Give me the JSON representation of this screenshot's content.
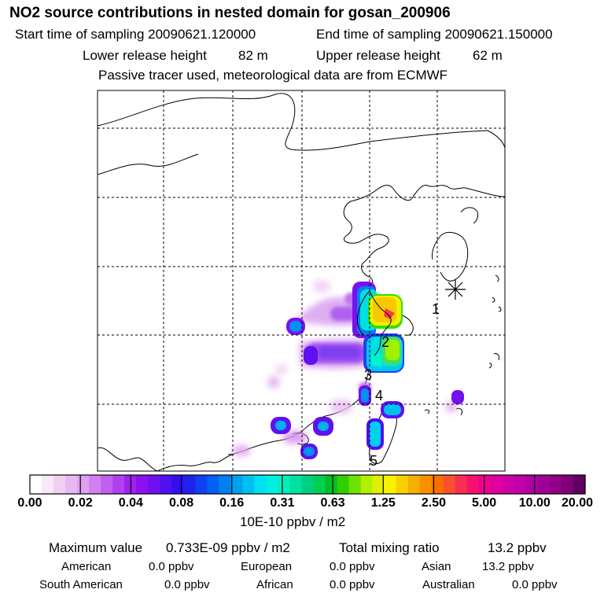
{
  "header": {
    "title": "NO2 source contributions in nested domain for gosan_200906",
    "start_label": "Start time of sampling 20090621.120000",
    "end_label": "End time of sampling 20090621.150000",
    "lower_label": "Lower release height",
    "lower_value": "82 m",
    "upper_label": "Upper release height",
    "upper_value": "62 m",
    "note": "Passive tracer used, meteorological data are from ECMWF"
  },
  "map": {
    "receptor_symbol": "asterisk-receptor",
    "source_labels": [
      "1",
      "2",
      "3",
      "4",
      "5"
    ]
  },
  "colorbar": {
    "tick_labels": [
      "0.00",
      "0.02",
      "0.04",
      "0.08",
      "0.16",
      "0.31",
      "0.63",
      "1.25",
      "2.50",
      "5.00",
      "10.00",
      "20.00"
    ],
    "colors": [
      "#ffffff",
      "#f8e8f8",
      "#f0d0f0",
      "#e8b8f0",
      "#e0a0f0",
      "#d080f0",
      "#c060f0",
      "#b040f0",
      "#a020f0",
      "#8c10f0",
      "#7010f0",
      "#5010f0",
      "#3010f0",
      "#2020f0",
      "#1040f0",
      "#0060f0",
      "#0080f0",
      "#00a0f0",
      "#00c0f0",
      "#00e0f0",
      "#00f0e0",
      "#00f0c0",
      "#00e0a0",
      "#00d080",
      "#00d050",
      "#00c020",
      "#30d000",
      "#70e000",
      "#b0f000",
      "#e0f000",
      "#f8f000",
      "#f8d000",
      "#f8b000",
      "#f89000",
      "#f87000",
      "#f85030",
      "#f83050",
      "#f81070",
      "#f00090",
      "#e000a0",
      "#d000a8",
      "#c000a8",
      "#b000a0",
      "#a00098",
      "#900088",
      "#800078",
      "#600060"
    ],
    "units": "10E-10 ppbv / m2"
  },
  "summary": {
    "max_label": "Maximum value",
    "max_value": "0.733E-09 ppbv / m2",
    "total_label": "Total mixing ratio",
    "total_value": "13.2 ppbv",
    "regions": [
      {
        "name": "American",
        "value": "0.0 ppbv"
      },
      {
        "name": "European",
        "value": "0.0 ppbv"
      },
      {
        "name": "Asian",
        "value": "13.2 ppbv"
      },
      {
        "name": "South American",
        "value": "0.0 ppbv"
      },
      {
        "name": "African",
        "value": "0.0 ppbv"
      },
      {
        "name": "Australian",
        "value": "0.0 ppbv"
      }
    ]
  }
}
